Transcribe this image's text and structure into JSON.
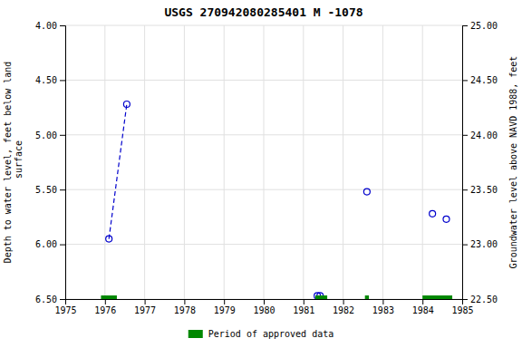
{
  "chart_data": {
    "type": "scatter",
    "title": "USGS 270942080285401 M  -1078",
    "ylabel": "Depth to water level, feet below land\n surface",
    "y2label": "Groundwater level above NAVD 1988, feet",
    "xlim": [
      1975,
      1985
    ],
    "ylim": [
      6.5,
      4.0
    ],
    "y2lim": [
      22.5,
      25.0
    ],
    "xticks": [
      1975,
      1976,
      1977,
      1978,
      1979,
      1980,
      1981,
      1982,
      1983,
      1984,
      1985
    ],
    "yticks": [
      {
        "value": 4.0,
        "label": "4.00"
      },
      {
        "value": 4.5,
        "label": "4.50"
      },
      {
        "value": 5.0,
        "label": "5.00"
      },
      {
        "value": 5.5,
        "label": "5.50"
      },
      {
        "value": 6.0,
        "label": "6.00"
      },
      {
        "value": 6.5,
        "label": "6.50"
      }
    ],
    "y2ticks": [
      {
        "value": 25.0,
        "label": "25.00"
      },
      {
        "value": 24.5,
        "label": "24.50"
      },
      {
        "value": 24.0,
        "label": "24.00"
      },
      {
        "value": 23.5,
        "label": "23.50"
      },
      {
        "value": 23.0,
        "label": "23.00"
      },
      {
        "value": 22.5,
        "label": "22.50"
      }
    ],
    "grid": true,
    "legend": "bottom",
    "series": [
      {
        "type": "line",
        "line_style": "dashed",
        "color": "#0000cc",
        "x": [
          1976.1,
          1976.55
        ],
        "values": [
          5.95,
          4.72
        ]
      },
      {
        "type": "scatter",
        "marker": "open-circle",
        "color": "#0000cc",
        "x": [
          1976.1,
          1976.55,
          1981.35,
          1981.42,
          1982.6,
          1984.25,
          1984.6
        ],
        "values": [
          5.95,
          4.72,
          6.47,
          6.47,
          5.52,
          5.72,
          5.77
        ]
      },
      {
        "type": "span",
        "name": "Period of approved data",
        "color": "#008800",
        "values": [
          [
            1975.9,
            1976.3
          ],
          [
            1981.3,
            1981.6
          ],
          [
            1982.55,
            1982.65
          ],
          [
            1984.0,
            1984.75
          ]
        ]
      }
    ]
  }
}
